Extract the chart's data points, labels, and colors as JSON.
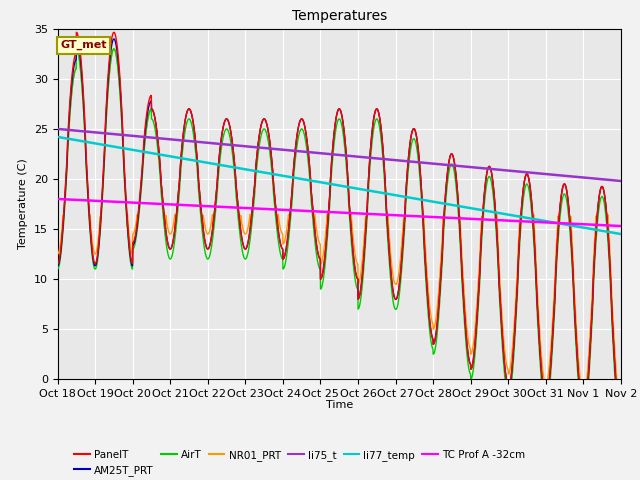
{
  "title": "Temperatures",
  "xlabel": "Time",
  "ylabel": "Temperature (C)",
  "ylim": [
    0,
    35
  ],
  "plot_bg": "#e8e8e8",
  "fig_bg": "#f2f2f2",
  "grid_color": "#ffffff",
  "legend_labels": [
    "PanelT",
    "AM25T_PRT",
    "AirT",
    "NR01_PRT",
    "li75_t",
    "li77_temp",
    "TC Prof A -32cm"
  ],
  "legend_colors": [
    "#ff0000",
    "#0000bb",
    "#00cc00",
    "#ff9900",
    "#9933cc",
    "#00cccc",
    "#ff00ff"
  ],
  "gt_met_box": {
    "text": "GT_met",
    "facecolor": "#ffffcc",
    "edgecolor": "#999900",
    "textcolor": "#880000"
  },
  "x_tick_labels": [
    "Oct 18",
    "Oct 19",
    "Oct 20",
    "Oct 21",
    "Oct 22",
    "Oct 23",
    "Oct 24",
    "Oct 25",
    "Oct 26",
    "Oct 27",
    "Oct 28",
    "Oct 29",
    "Oct 30",
    "Oct 31",
    "Nov 1",
    "Nov 2"
  ],
  "series_colors": {
    "PanelT": "#ff0000",
    "AM25T_PRT": "#0000bb",
    "AirT": "#00cc00",
    "NR01_PRT": "#ff9900",
    "li75_t": "#9933cc",
    "li77_temp": "#00cccc",
    "TC_prof_A": "#ff00ff"
  },
  "li75_trend": [
    25.0,
    19.8
  ],
  "li77_trend": [
    24.2,
    14.5
  ],
  "tc_prof_trend": [
    18.0,
    15.3
  ]
}
